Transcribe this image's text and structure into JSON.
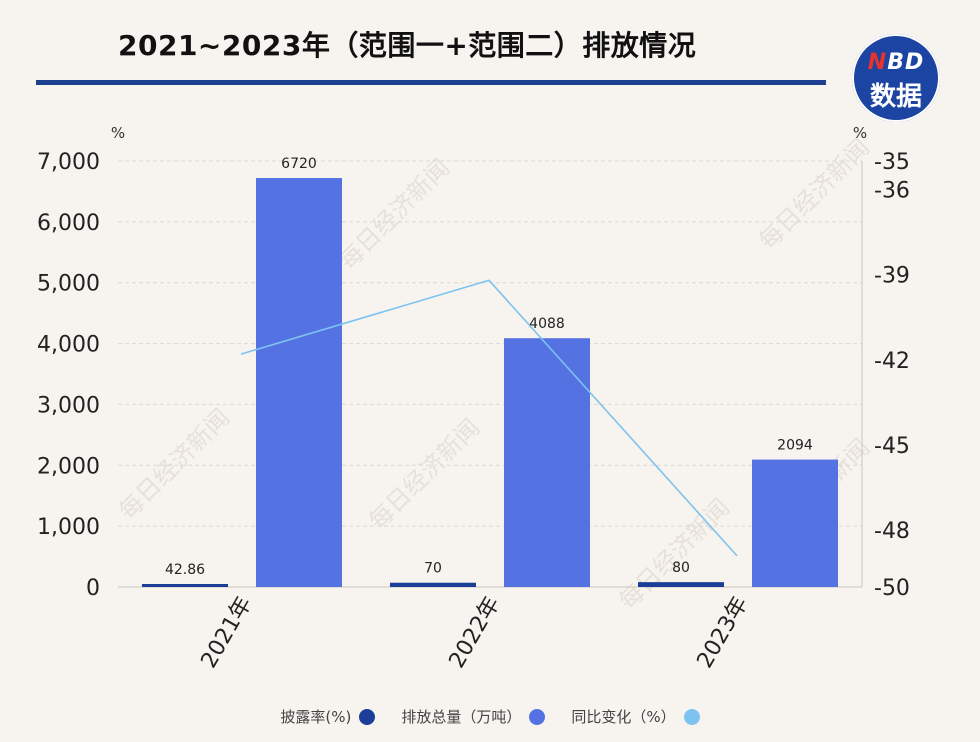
{
  "title": "2021~2023年（范围一+范围二）排放情况",
  "logo": {
    "line1_n": "N",
    "line1_rest": "BD",
    "line2": "数据"
  },
  "watermark": "每日经济新闻",
  "colors": {
    "disclosure_rate": "#1b3f99",
    "emissions": "#5572e3",
    "yoy_change": "#7cc3f0",
    "title_rule": "#1d3f8f",
    "background": "#f7f4ef"
  },
  "chart_data": {
    "type": "bar",
    "categories": [
      "2021年",
      "2022年",
      "2023年"
    ],
    "series": [
      {
        "name": "披露率(%)",
        "kind": "bar",
        "axis": "left",
        "values": [
          42.86,
          70,
          80
        ],
        "labels": [
          "42.86",
          "70",
          "80"
        ]
      },
      {
        "name": "排放总量（万吨）",
        "kind": "bar",
        "axis": "left",
        "values": [
          6720,
          4088,
          2094
        ],
        "labels": [
          "6720",
          "4088",
          "2094"
        ]
      },
      {
        "name": "同比变化（%）",
        "kind": "line",
        "axis": "right",
        "values": [
          -41.8,
          -39.2,
          -48.9
        ]
      }
    ],
    "left_axis": {
      "unit": "%",
      "ylim": [
        0,
        7000
      ],
      "ticks": [
        0,
        1000,
        2000,
        3000,
        4000,
        5000,
        6000,
        7000
      ],
      "tick_labels": [
        "0",
        "1,000",
        "2,000",
        "3,000",
        "4,000",
        "5,000",
        "6,000",
        "7,000"
      ]
    },
    "right_axis": {
      "unit": "%",
      "ylim": [
        -50,
        -35
      ],
      "ticks": [
        -35,
        -36,
        -39,
        -42,
        -45,
        -48,
        -50
      ],
      "tick_labels": [
        "-35",
        "-36",
        "-39",
        "-42",
        "-45",
        "-48",
        "-50"
      ]
    },
    "grid": "horizontal-dashed",
    "legend_position": "bottom"
  }
}
